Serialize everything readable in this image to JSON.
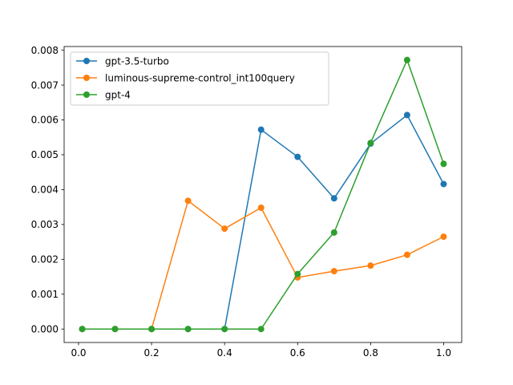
{
  "chart_data": {
    "type": "line",
    "title": "",
    "xlabel": "",
    "ylabel": "",
    "xlim": [
      -0.0395,
      1.0495
    ],
    "ylim": [
      -0.000386,
      0.008106
    ],
    "x_ticks": [
      {
        "value": 0.0,
        "label": "0.0"
      },
      {
        "value": 0.2,
        "label": "0.2"
      },
      {
        "value": 0.4,
        "label": "0.4"
      },
      {
        "value": 0.6,
        "label": "0.6"
      },
      {
        "value": 0.8,
        "label": "0.8"
      },
      {
        "value": 1.0,
        "label": "1.0"
      }
    ],
    "y_ticks": [
      {
        "value": 0.0,
        "label": "0.000"
      },
      {
        "value": 0.001,
        "label": "0.001"
      },
      {
        "value": 0.002,
        "label": "0.002"
      },
      {
        "value": 0.003,
        "label": "0.003"
      },
      {
        "value": 0.004,
        "label": "0.004"
      },
      {
        "value": 0.005,
        "label": "0.005"
      },
      {
        "value": 0.006,
        "label": "0.006"
      },
      {
        "value": 0.007,
        "label": "0.007"
      },
      {
        "value": 0.008,
        "label": "0.008"
      }
    ],
    "grid": false,
    "legend_position": "top-left",
    "x": [
      0.01,
      0.1,
      0.2,
      0.3,
      0.4,
      0.5,
      0.6,
      0.7,
      0.8,
      0.9,
      1.0
    ],
    "series": [
      {
        "name": "gpt-3.5-turbo",
        "color": "#1f77b4",
        "values": [
          0.0,
          0.0,
          0.0,
          0.0,
          0.0,
          0.00572,
          0.00494,
          0.00375,
          0.00532,
          0.00614,
          0.00416
        ]
      },
      {
        "name": "luminous-supreme-control_int100query",
        "color": "#ff7f0e",
        "values": [
          0.0,
          0.0,
          0.0,
          0.00368,
          0.00288,
          0.00348,
          0.00148,
          0.00166,
          0.00182,
          0.00213,
          0.00265
        ]
      },
      {
        "name": "gpt-4",
        "color": "#2ca02c",
        "values": [
          0.0,
          0.0,
          0.0,
          0.0,
          0.0,
          0.0,
          0.00158,
          0.00277,
          0.00534,
          0.00772,
          0.00474
        ]
      }
    ]
  }
}
